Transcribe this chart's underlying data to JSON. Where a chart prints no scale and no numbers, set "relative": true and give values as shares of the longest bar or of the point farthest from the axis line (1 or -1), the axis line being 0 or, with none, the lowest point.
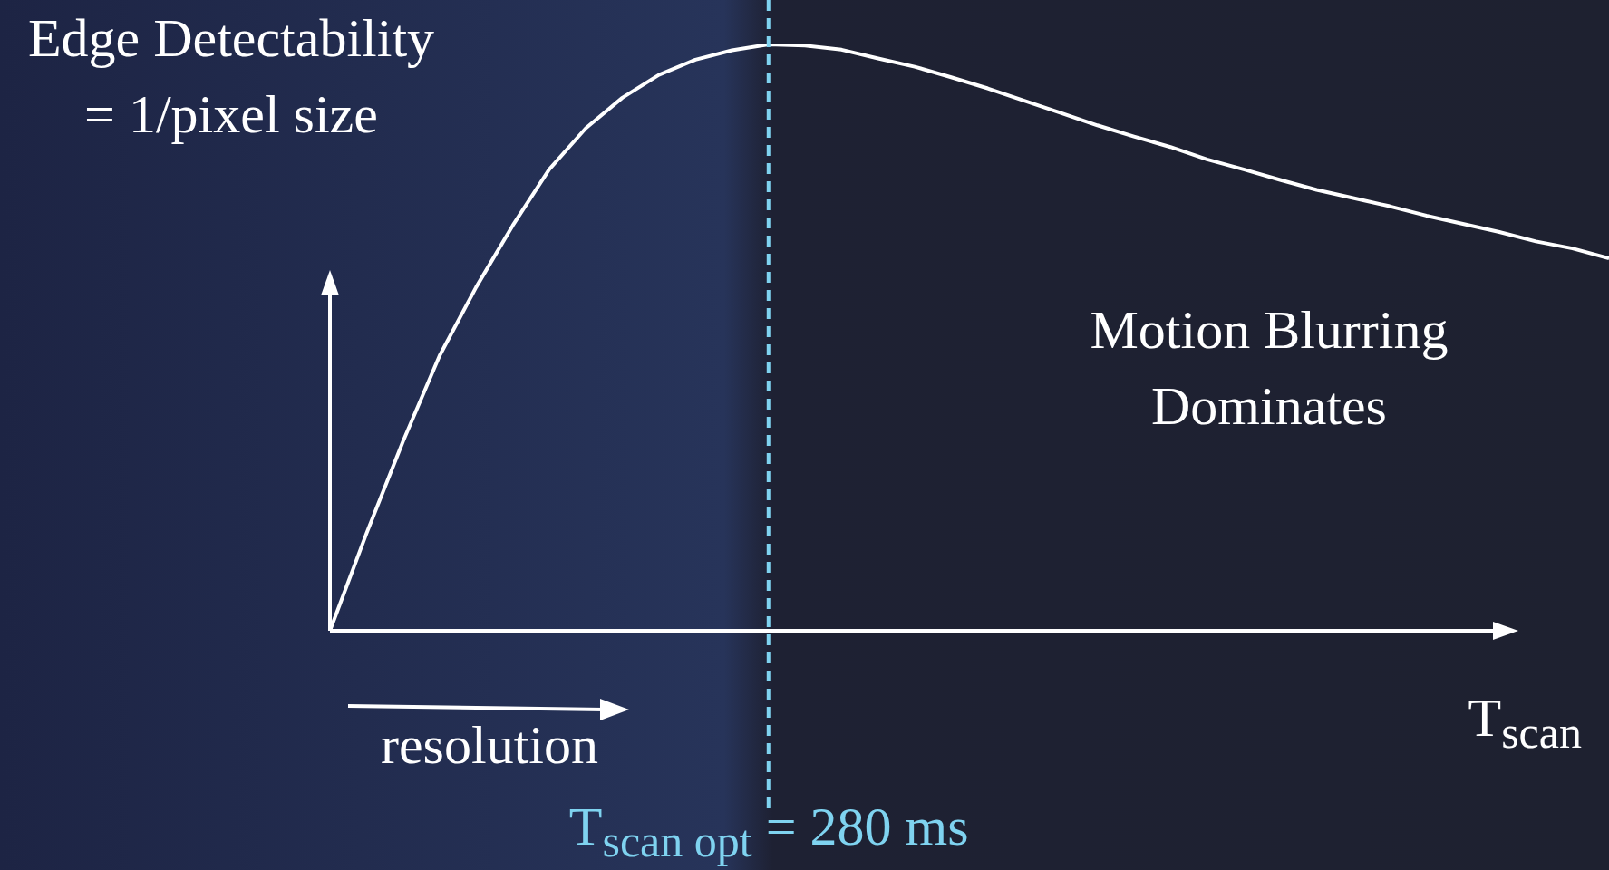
{
  "chart_data": {
    "type": "line",
    "relative": true,
    "ylabel": "Edge Detectability = 1/pixel size",
    "xlabel": "T$_{scan}$",
    "categories": [
      null,
      null,
      null,
      null,
      null,
      null,
      null,
      null,
      null,
      null,
      null,
      null,
      null,
      null,
      null,
      null,
      null,
      null,
      null,
      null,
      null,
      null,
      null,
      null,
      null,
      null,
      null,
      null,
      null,
      null,
      null,
      null,
      null,
      null,
      null,
      null
    ],
    "legend": false,
    "marker": "none",
    "series": [
      {
        "color": "#ffffff",
        "values": [
          0,
          0.166,
          0.323,
          0.469,
          0.586,
          0.691,
          0.787,
          0.857,
          0.909,
          0.948,
          0.974,
          0.99,
          1,
          0.998,
          0.991,
          0.976,
          0.962,
          0.944,
          0.925,
          0.904,
          0.883,
          0.862,
          0.843,
          0.825,
          0.804,
          0.787,
          0.769,
          0.752,
          0.738,
          0.724,
          0.708,
          0.694,
          0.68,
          0.664,
          0.652,
          0.635
        ]
      }
    ],
    "annotations": [
      "resolution",
      "Motion Blurring Dominates",
      "T$_{scan opt}$ = 280 ms"
    ]
  }
}
